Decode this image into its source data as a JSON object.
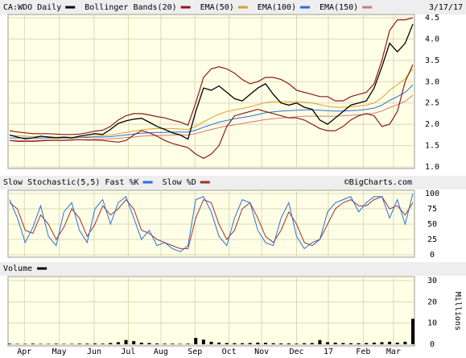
{
  "chart_data": [
    {
      "type": "line",
      "name": "price",
      "annotation": "3/17/17",
      "ylim": [
        1.0,
        4.5
      ],
      "yticks": [
        {
          "value": 1,
          "label": "1.0"
        },
        1.5,
        {
          "value": 2,
          "label": "2.0"
        },
        2.5,
        {
          "value": 3,
          "label": "3.0"
        },
        3.5,
        {
          "value": 4,
          "label": "4.0"
        },
        4.5
      ],
      "grid": true,
      "series": [
        {
          "name": "CA:WDO Daily",
          "color": "#000000",
          "values": [
            1.75,
            1.7,
            1.66,
            1.68,
            1.72,
            1.7,
            1.68,
            1.7,
            1.68,
            1.72,
            1.75,
            1.78,
            1.76,
            1.88,
            2.02,
            2.08,
            2.12,
            2.14,
            2.05,
            1.95,
            1.88,
            1.8,
            1.75,
            1.65,
            2.3,
            2.85,
            2.8,
            2.9,
            2.75,
            2.6,
            2.55,
            2.7,
            2.85,
            2.95,
            2.7,
            2.5,
            2.45,
            2.5,
            2.4,
            2.35,
            2.1,
            2.0,
            2.15,
            2.3,
            2.45,
            2.5,
            2.55,
            2.85,
            3.35,
            3.9,
            3.7,
            3.9,
            4.35
          ]
        },
        {
          "name": "Bollinger Bands(20)",
          "color": "#8b1a1a",
          "upper": [
            1.85,
            1.82,
            1.8,
            1.78,
            1.78,
            1.78,
            1.77,
            1.76,
            1.76,
            1.77,
            1.8,
            1.84,
            1.86,
            1.95,
            2.1,
            2.2,
            2.25,
            2.25,
            2.22,
            2.18,
            2.15,
            2.1,
            2.05,
            1.98,
            2.5,
            3.1,
            3.3,
            3.35,
            3.3,
            3.2,
            3.05,
            2.95,
            3.0,
            3.1,
            3.1,
            3.05,
            2.95,
            2.8,
            2.75,
            2.7,
            2.65,
            2.65,
            2.55,
            2.55,
            2.65,
            2.7,
            2.75,
            2.95,
            3.5,
            4.2,
            4.45,
            4.45,
            4.5
          ],
          "lower": [
            1.62,
            1.6,
            1.6,
            1.6,
            1.61,
            1.62,
            1.62,
            1.62,
            1.63,
            1.64,
            1.63,
            1.63,
            1.62,
            1.6,
            1.58,
            1.62,
            1.75,
            1.85,
            1.8,
            1.72,
            1.62,
            1.55,
            1.5,
            1.45,
            1.3,
            1.2,
            1.3,
            1.5,
            1.95,
            2.2,
            2.25,
            2.3,
            2.35,
            2.3,
            2.25,
            2.2,
            2.15,
            2.15,
            2.1,
            2.0,
            1.9,
            1.85,
            1.85,
            1.95,
            2.1,
            2.2,
            2.25,
            2.2,
            1.95,
            2.0,
            2.3,
            3.0,
            3.4
          ]
        },
        {
          "name": "EMA(50)",
          "color": "#d9a030",
          "values": [
            1.74,
            1.73,
            1.72,
            1.71,
            1.71,
            1.71,
            1.7,
            1.7,
            1.7,
            1.7,
            1.71,
            1.72,
            1.73,
            1.75,
            1.78,
            1.81,
            1.84,
            1.87,
            1.89,
            1.9,
            1.9,
            1.9,
            1.89,
            1.88,
            1.95,
            2.06,
            2.15,
            2.24,
            2.3,
            2.34,
            2.37,
            2.41,
            2.46,
            2.51,
            2.53,
            2.53,
            2.53,
            2.53,
            2.52,
            2.5,
            2.46,
            2.42,
            2.4,
            2.4,
            2.41,
            2.43,
            2.45,
            2.5,
            2.62,
            2.8,
            2.93,
            3.07,
            3.3
          ]
        },
        {
          "name": "EMA(100)",
          "color": "#2a6fe0",
          "values": [
            1.68,
            1.68,
            1.68,
            1.68,
            1.68,
            1.68,
            1.68,
            1.68,
            1.68,
            1.69,
            1.69,
            1.7,
            1.7,
            1.71,
            1.73,
            1.75,
            1.77,
            1.79,
            1.8,
            1.81,
            1.81,
            1.82,
            1.82,
            1.82,
            1.86,
            1.93,
            1.99,
            2.05,
            2.09,
            2.13,
            2.16,
            2.19,
            2.23,
            2.27,
            2.29,
            2.31,
            2.32,
            2.33,
            2.34,
            2.34,
            2.33,
            2.32,
            2.31,
            2.31,
            2.32,
            2.33,
            2.35,
            2.38,
            2.45,
            2.56,
            2.65,
            2.75,
            2.92
          ]
        },
        {
          "name": "EMA(150)",
          "color": "#d07a7a",
          "values": [
            1.62,
            1.62,
            1.62,
            1.62,
            1.63,
            1.63,
            1.63,
            1.63,
            1.64,
            1.64,
            1.64,
            1.65,
            1.65,
            1.66,
            1.67,
            1.69,
            1.7,
            1.72,
            1.73,
            1.74,
            1.74,
            1.75,
            1.75,
            1.75,
            1.78,
            1.83,
            1.88,
            1.92,
            1.96,
            1.99,
            2.02,
            2.05,
            2.08,
            2.11,
            2.13,
            2.15,
            2.16,
            2.18,
            2.19,
            2.19,
            2.19,
            2.19,
            2.19,
            2.2,
            2.21,
            2.22,
            2.24,
            2.26,
            2.31,
            2.39,
            2.46,
            2.54,
            2.68
          ]
        }
      ]
    },
    {
      "type": "line",
      "name": "stochastic",
      "title": "Slow Stochastic(5,5)",
      "annotation": "©BigCharts.com",
      "ylim": [
        0,
        100
      ],
      "yticks": [
        0,
        25,
        50,
        75,
        100
      ],
      "grid": true,
      "series": [
        {
          "name": "Fast %K",
          "color": "#2a6fe0",
          "values": [
            90,
            60,
            20,
            45,
            80,
            30,
            15,
            70,
            85,
            40,
            20,
            75,
            90,
            50,
            85,
            95,
            60,
            25,
            40,
            15,
            20,
            10,
            5,
            15,
            90,
            95,
            70,
            30,
            15,
            60,
            90,
            85,
            40,
            20,
            15,
            60,
            85,
            30,
            10,
            20,
            25,
            70,
            85,
            90,
            95,
            70,
            85,
            95,
            95,
            60,
            90,
            50,
            100
          ]
        },
        {
          "name": "Slow %D",
          "color": "#a03030",
          "values": [
            85,
            75,
            40,
            35,
            65,
            50,
            25,
            45,
            75,
            60,
            30,
            50,
            80,
            65,
            75,
            90,
            75,
            40,
            35,
            25,
            20,
            15,
            10,
            10,
            60,
            90,
            85,
            50,
            25,
            40,
            75,
            85,
            60,
            30,
            20,
            40,
            70,
            50,
            20,
            15,
            25,
            50,
            75,
            85,
            90,
            80,
            80,
            90,
            95,
            75,
            80,
            65,
            85
          ]
        }
      ]
    },
    {
      "type": "bar",
      "name": "volume",
      "title": "Volume",
      "ylabel": "Millions",
      "color": "#000000",
      "ylim": [
        0,
        30
      ],
      "yticks": [
        0,
        10,
        20,
        30
      ],
      "grid": true,
      "x": [
        0,
        1,
        2,
        3,
        4,
        5,
        6,
        7,
        8,
        9,
        10,
        11,
        12,
        13,
        14,
        15,
        16,
        17,
        18,
        19,
        20,
        21,
        22,
        23,
        24,
        25,
        26,
        27,
        28,
        29,
        30,
        31,
        32,
        33,
        34,
        35,
        36,
        37,
        38,
        39,
        40,
        41,
        42,
        43,
        44,
        45,
        46,
        47,
        48,
        49,
        50,
        51,
        52
      ],
      "xlim": [
        0,
        52
      ],
      "xticks": [
        {
          "value": 1.9,
          "label": "Apr"
        },
        {
          "value": 6.4,
          "label": "May"
        },
        {
          "value": 10.9,
          "label": "Jun"
        },
        {
          "value": 15.3,
          "label": "Jul"
        },
        {
          "value": 19.5,
          "label": "Aug"
        },
        {
          "value": 23.9,
          "label": "Sep"
        },
        {
          "value": 28.3,
          "label": "Oct"
        },
        {
          "value": 32.5,
          "label": "Nov"
        },
        {
          "value": 37.0,
          "label": "Dec"
        },
        {
          "value": 41.1,
          "label": "17"
        },
        {
          "value": 45.6,
          "label": "Feb"
        },
        {
          "value": 49.5,
          "label": "Mar"
        }
      ],
      "values": [
        0.3,
        0.2,
        0.2,
        0.3,
        0.2,
        0.2,
        0.3,
        0.2,
        0.2,
        0.3,
        0.3,
        0.4,
        0.3,
        0.6,
        1.0,
        2.0,
        1.5,
        0.8,
        0.6,
        0.4,
        0.3,
        0.3,
        0.2,
        0.3,
        3.0,
        2.2,
        1.2,
        0.8,
        0.6,
        0.5,
        0.5,
        0.6,
        0.8,
        0.7,
        0.5,
        0.4,
        0.4,
        0.3,
        0.5,
        0.6,
        2.0,
        1.0,
        0.8,
        0.6,
        0.5,
        0.5,
        0.6,
        0.8,
        1.0,
        1.2,
        0.8,
        1.2,
        12.0
      ]
    }
  ]
}
